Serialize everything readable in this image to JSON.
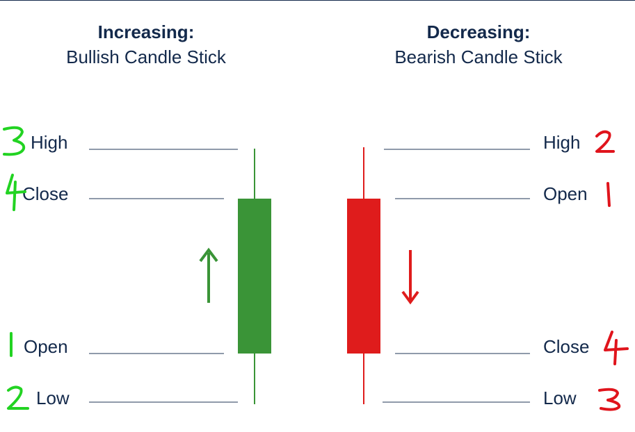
{
  "colors": {
    "text": "#13294b",
    "guide": "#8f9aaa",
    "bullish": "#3a9437",
    "bearish": "#df1c1c",
    "annotation_left": "#22d322",
    "annotation_right": "#e0141c"
  },
  "bullish": {
    "title": "Increasing:",
    "subtitle": "Bullish Candle Stick",
    "labels": {
      "high": "High",
      "close": "Close",
      "open": "Open",
      "low": "Low"
    },
    "annotations": {
      "high": "3",
      "close": "4",
      "open": "1",
      "low": "2"
    },
    "arrow": "up"
  },
  "bearish": {
    "title": "Decreasing:",
    "subtitle": "Bearish Candle Stick",
    "labels": {
      "high": "High",
      "open": "Open",
      "close": "Close",
      "low": "Low"
    },
    "annotations": {
      "high": "2",
      "open": "1",
      "close": "4",
      "low": "3"
    },
    "arrow": "down"
  }
}
